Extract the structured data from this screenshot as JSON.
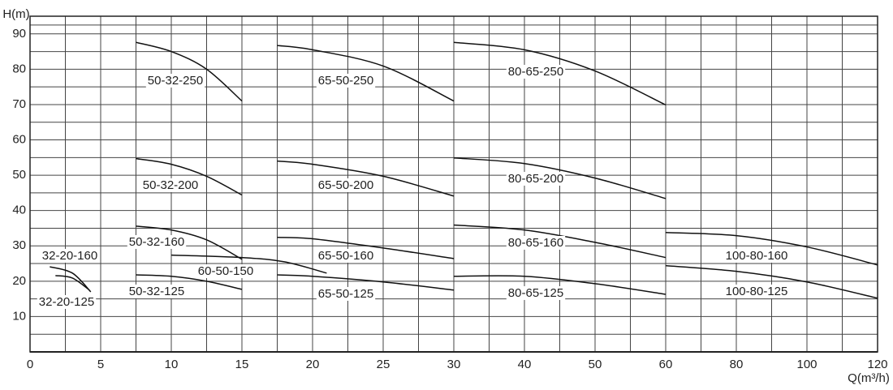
{
  "chart_data": {
    "type": "line",
    "xlabel": "Q(m³/h)",
    "ylabel": "H(m)",
    "xlim": [
      0,
      120
    ],
    "xticks": [
      0,
      5,
      10,
      15,
      20,
      25,
      30,
      40,
      50,
      60,
      80,
      100,
      120
    ],
    "ylim": [
      0,
      95
    ],
    "yticks": [
      10,
      20,
      30,
      40,
      50,
      60,
      70,
      80,
      90
    ],
    "grid": true,
    "color": "#111111",
    "series": [
      {
        "name": "32-20-160",
        "x": [
          1.4,
          3,
          4.3
        ],
        "values": [
          24.1,
          22.3,
          17
        ]
      },
      {
        "name": "32-20-125",
        "x": [
          1.8,
          3,
          4.2
        ],
        "values": [
          21.6,
          20.9,
          17.5
        ]
      },
      {
        "name": "50-32-250",
        "x": [
          7.5,
          10,
          12.5,
          15
        ],
        "values": [
          87.6,
          85,
          80,
          71
        ]
      },
      {
        "name": "50-32-200",
        "x": [
          7.5,
          10,
          12.5,
          15
        ],
        "values": [
          54.7,
          53.1,
          49.7,
          44.4
        ]
      },
      {
        "name": "50-32-160",
        "x": [
          7.5,
          10,
          12.5,
          15
        ],
        "values": [
          35.6,
          34.5,
          31.7,
          26.2
        ]
      },
      {
        "name": "50-32-125",
        "x": [
          7.5,
          10,
          12.5,
          15
        ],
        "values": [
          21.8,
          21.4,
          20,
          17.7
        ]
      },
      {
        "name": "60-50-150",
        "x": [
          10,
          15,
          18,
          21
        ],
        "values": [
          27.4,
          26.7,
          25.5,
          22.3
        ]
      },
      {
        "name": "65-50-250",
        "x": [
          17.5,
          20,
          25,
          30
        ],
        "values": [
          86.7,
          85.5,
          80.9,
          71
        ]
      },
      {
        "name": "65-50-200",
        "x": [
          17.5,
          20,
          25,
          30
        ],
        "values": [
          54,
          53.1,
          49.7,
          44.1
        ]
      },
      {
        "name": "65-50-160",
        "x": [
          17.5,
          20,
          25,
          30
        ],
        "values": [
          32.4,
          32,
          29.4,
          26.4
        ]
      },
      {
        "name": "65-50-125",
        "x": [
          17.5,
          20,
          25,
          30
        ],
        "values": [
          21.8,
          21.4,
          19.8,
          17.5
        ]
      },
      {
        "name": "80-65-250",
        "x": [
          30,
          40,
          50,
          60
        ],
        "values": [
          87.6,
          85.5,
          79.5,
          69.9
        ]
      },
      {
        "name": "80-65-200",
        "x": [
          30,
          40,
          50,
          60
        ],
        "values": [
          54.9,
          53.3,
          49.2,
          43.4
        ]
      },
      {
        "name": "80-65-160",
        "x": [
          30,
          40,
          50,
          60
        ],
        "values": [
          35.9,
          34.5,
          31,
          26.7
        ]
      },
      {
        "name": "80-65-125",
        "x": [
          30,
          40,
          50,
          60
        ],
        "values": [
          21.4,
          21.4,
          19.3,
          16.3
        ]
      },
      {
        "name": "100-80-160",
        "x": [
          60,
          80,
          100,
          120
        ],
        "values": [
          33.8,
          32.9,
          29.7,
          24.6
        ]
      },
      {
        "name": "100-80-125",
        "x": [
          60,
          80,
          100,
          120
        ],
        "values": [
          24.4,
          22.8,
          19.8,
          15.2
        ]
      }
    ]
  }
}
